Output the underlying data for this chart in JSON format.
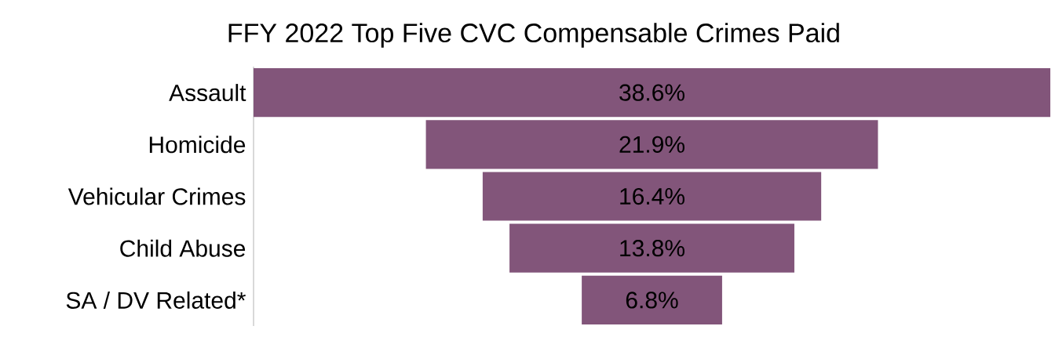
{
  "chart_data": {
    "type": "other",
    "title": "FFY 2022 Top Five CVC Compensable Crimes Paid",
    "categories": [
      "Assault",
      "Homicide",
      "Vehicular Crimes",
      "Child Abuse",
      "SA / DV Related*"
    ],
    "values": [
      38.6,
      21.9,
      16.4,
      13.8,
      6.8
    ],
    "value_labels": [
      "38.6%",
      "21.9%",
      "16.4%",
      "13.8%",
      "6.8%"
    ],
    "color": "#82557a"
  }
}
